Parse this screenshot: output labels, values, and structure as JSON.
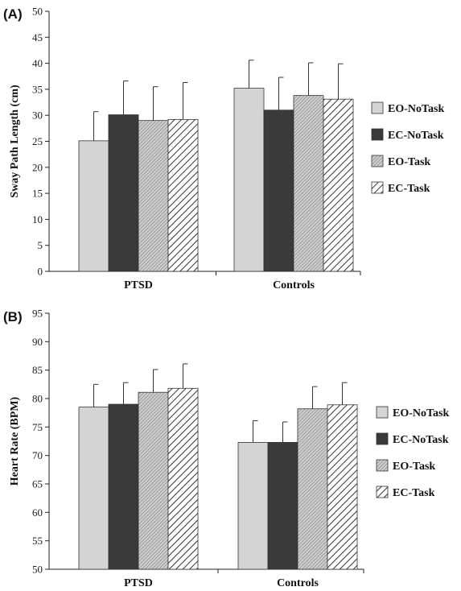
{
  "chart_data": [
    {
      "type": "bar",
      "panel_label": "(A)",
      "categories": [
        "PTSD",
        "Controls"
      ],
      "ylabel": "Sway Path Length (cm)",
      "xlabel": "",
      "ylim": [
        0,
        50
      ],
      "yticks": [
        "0",
        "5",
        "10",
        "15",
        "20",
        "25",
        "30",
        "35",
        "40",
        "45",
        "50"
      ],
      "legend_position": "right",
      "series": [
        {
          "name": "EO-NoTask",
          "values": [
            25.1,
            35.2
          ],
          "errors": [
            5.6,
            5.4
          ],
          "fill": "light"
        },
        {
          "name": "EC-NoTask",
          "values": [
            30.1,
            31.0
          ],
          "errors": [
            6.5,
            6.3
          ],
          "fill": "dark"
        },
        {
          "name": "EO-Task",
          "values": [
            29.0,
            33.8
          ],
          "errors": [
            6.5,
            6.3
          ],
          "fill": "dense-hatch"
        },
        {
          "name": "EC-Task",
          "values": [
            29.2,
            33.1
          ],
          "errors": [
            7.1,
            6.8
          ],
          "fill": "hatch"
        }
      ]
    },
    {
      "type": "bar",
      "panel_label": "(B)",
      "categories": [
        "PTSD",
        "Controls"
      ],
      "ylabel": "Heart Rate (BPM)",
      "xlabel": "",
      "ylim": [
        50,
        95
      ],
      "yticks": [
        "50",
        "55",
        "60",
        "65",
        "70",
        "75",
        "80",
        "85",
        "90",
        "95"
      ],
      "legend_position": "right",
      "series": [
        {
          "name": "EO-NoTask",
          "values": [
            78.5,
            72.3
          ],
          "errors": [
            4.0,
            3.8
          ],
          "fill": "light"
        },
        {
          "name": "EC-NoTask",
          "values": [
            79.0,
            72.3
          ],
          "errors": [
            3.8,
            3.6
          ],
          "fill": "dark"
        },
        {
          "name": "EO-Task",
          "values": [
            81.1,
            78.2
          ],
          "errors": [
            4.0,
            3.9
          ],
          "fill": "dense-hatch"
        },
        {
          "name": "EC-Task",
          "values": [
            81.8,
            78.9
          ],
          "errors": [
            4.3,
            3.9
          ],
          "fill": "hatch"
        }
      ]
    }
  ]
}
